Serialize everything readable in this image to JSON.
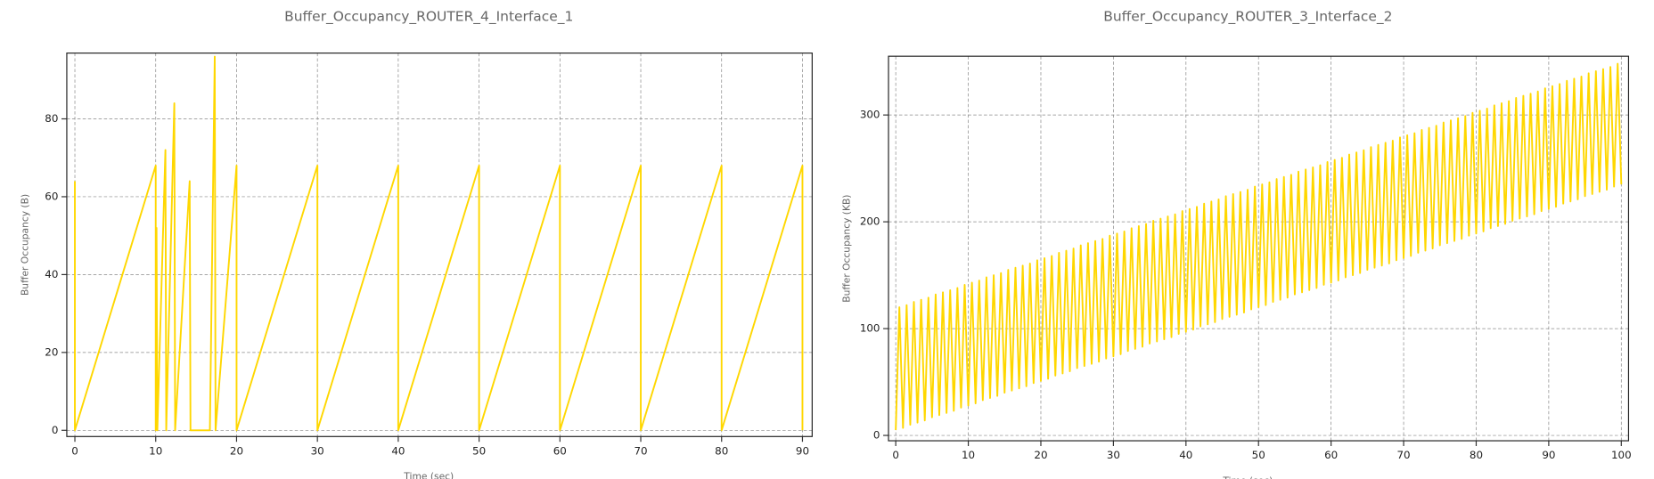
{
  "chart_data": [
    {
      "type": "line",
      "title": "Buffer_Occupancy_ROUTER_4_Interface_1",
      "x_label": "Time (sec)",
      "y_label": "Buffer Occupancy (B)",
      "color": "#ffd700",
      "grid": true,
      "x": [
        0,
        0,
        10,
        10,
        10.1,
        10.2,
        11.2,
        11.3,
        12.3,
        12.4,
        14.2,
        14.3,
        16.7,
        17.3,
        17.4,
        20,
        20,
        30,
        30,
        40,
        40,
        50,
        50,
        60,
        60,
        70,
        70,
        80,
        80,
        90,
        90
      ],
      "values": [
        64,
        0,
        68,
        0,
        52,
        0,
        72,
        0,
        84,
        0,
        64,
        0,
        0,
        96,
        0,
        68,
        0,
        68,
        0,
        68,
        0,
        68,
        0,
        68,
        0,
        68,
        0,
        68,
        0,
        68,
        0
      ],
      "xlim": [
        -1,
        91.2
      ],
      "ylim": [
        -1.6,
        96.9
      ],
      "xticks": [
        0,
        10,
        20,
        30,
        40,
        50,
        60,
        70,
        80,
        90
      ],
      "yticks": [
        0,
        20,
        40,
        60,
        80
      ]
    },
    {
      "type": "line",
      "title": "Buffer_Occupancy_ROUTER_3_Interface_2",
      "x_label": "Time (sec)",
      "y_label": "Buffer Occupancy (KB)",
      "color": "#ffd700",
      "grid": true,
      "x": [
        0,
        0.5,
        1,
        1.5,
        2,
        2.5,
        3,
        3.5,
        4,
        4.5,
        5,
        5.5,
        6,
        6.5,
        7,
        7.5,
        8,
        8.5,
        9,
        9.5,
        10,
        10.5,
        11,
        11.5,
        12,
        12.5,
        13,
        13.5,
        14,
        14.5,
        15,
        15.5,
        16,
        16.5,
        17,
        17.5,
        18,
        18.5,
        19,
        19.5,
        20,
        20.5,
        21,
        21.5,
        22,
        22.5,
        23,
        23.5,
        24,
        24.5,
        25,
        25.5,
        26,
        26.5,
        27,
        27.5,
        28,
        28.5,
        29,
        29.5,
        30,
        30.5,
        31,
        31.5,
        32,
        32.5,
        33,
        33.5,
        34,
        34.5,
        35,
        35.5,
        36,
        36.5,
        37,
        37.5,
        38,
        38.5,
        39,
        39.5,
        40,
        40.5,
        41,
        41.5,
        42,
        42.5,
        43,
        43.5,
        44,
        44.5,
        45,
        45.5,
        46,
        46.5,
        47,
        47.5,
        48,
        48.5,
        49,
        49.5,
        50,
        50.5,
        51,
        51.5,
        52,
        52.5,
        53,
        53.5,
        54,
        54.5,
        55,
        55.5,
        56,
        56.5,
        57,
        57.5,
        58,
        58.5,
        59,
        59.5,
        60,
        60.5,
        61,
        61.5,
        62,
        62.5,
        63,
        63.5,
        64,
        64.5,
        65,
        65.5,
        66,
        66.5,
        67,
        67.5,
        68,
        68.5,
        69,
        69.5,
        70,
        70.5,
        71,
        71.5,
        72,
        72.5,
        73,
        73.5,
        74,
        74.5,
        75,
        75.5,
        76,
        76.5,
        77,
        77.5,
        78,
        78.5,
        79,
        79.5,
        80,
        80.5,
        81,
        81.5,
        82,
        82.5,
        83,
        83.5,
        84,
        84.5,
        85,
        85.5,
        86,
        86.5,
        87,
        87.5,
        88,
        88.5,
        89,
        89.5,
        90,
        90.5,
        91,
        91.5,
        92,
        92.5,
        93,
        93.5,
        94,
        94.5,
        95,
        95.5,
        96,
        96.5,
        97,
        97.5,
        98,
        98.5,
        99,
        99.5,
        100
      ],
      "values": [
        5,
        120,
        7,
        122,
        10,
        125,
        12,
        127,
        14,
        129,
        17,
        132,
        19,
        134,
        21,
        136,
        23,
        138,
        26,
        141,
        28,
        143,
        30,
        145,
        33,
        148,
        35,
        150,
        37,
        152,
        40,
        155,
        42,
        157,
        44,
        159,
        46,
        161,
        49,
        164,
        51,
        166,
        53,
        168,
        56,
        171,
        58,
        173,
        60,
        175,
        63,
        178,
        65,
        180,
        67,
        182,
        69,
        184,
        72,
        187,
        74,
        189,
        76,
        191,
        79,
        194,
        81,
        196,
        83,
        198,
        86,
        201,
        88,
        203,
        90,
        205,
        92,
        207,
        95,
        210,
        97,
        212,
        99,
        214,
        102,
        217,
        104,
        219,
        106,
        221,
        109,
        224,
        111,
        226,
        113,
        228,
        115,
        230,
        118,
        233,
        120,
        235,
        122,
        237,
        125,
        240,
        127,
        242,
        129,
        244,
        132,
        247,
        134,
        249,
        136,
        251,
        138,
        253,
        141,
        256,
        143,
        258,
        145,
        260,
        148,
        263,
        150,
        265,
        152,
        267,
        155,
        270,
        157,
        272,
        159,
        274,
        161,
        276,
        164,
        279,
        166,
        281,
        168,
        283,
        171,
        286,
        173,
        288,
        175,
        290,
        178,
        293,
        180,
        295,
        182,
        297,
        184,
        299,
        187,
        302,
        189,
        304,
        191,
        306,
        194,
        309,
        196,
        311,
        198,
        313,
        201,
        316,
        203,
        318,
        205,
        320,
        207,
        322,
        210,
        325,
        212,
        327,
        214,
        329,
        217,
        332,
        219,
        334,
        221,
        336,
        224,
        339,
        226,
        341,
        228,
        343,
        230,
        345,
        233,
        348,
        235
      ],
      "xlim": [
        -1,
        101
      ],
      "ylim": [
        -5,
        355
      ],
      "xticks": [
        0,
        10,
        20,
        30,
        40,
        50,
        60,
        70,
        80,
        90,
        100
      ],
      "yticks": [
        0,
        100,
        200,
        300
      ]
    }
  ]
}
